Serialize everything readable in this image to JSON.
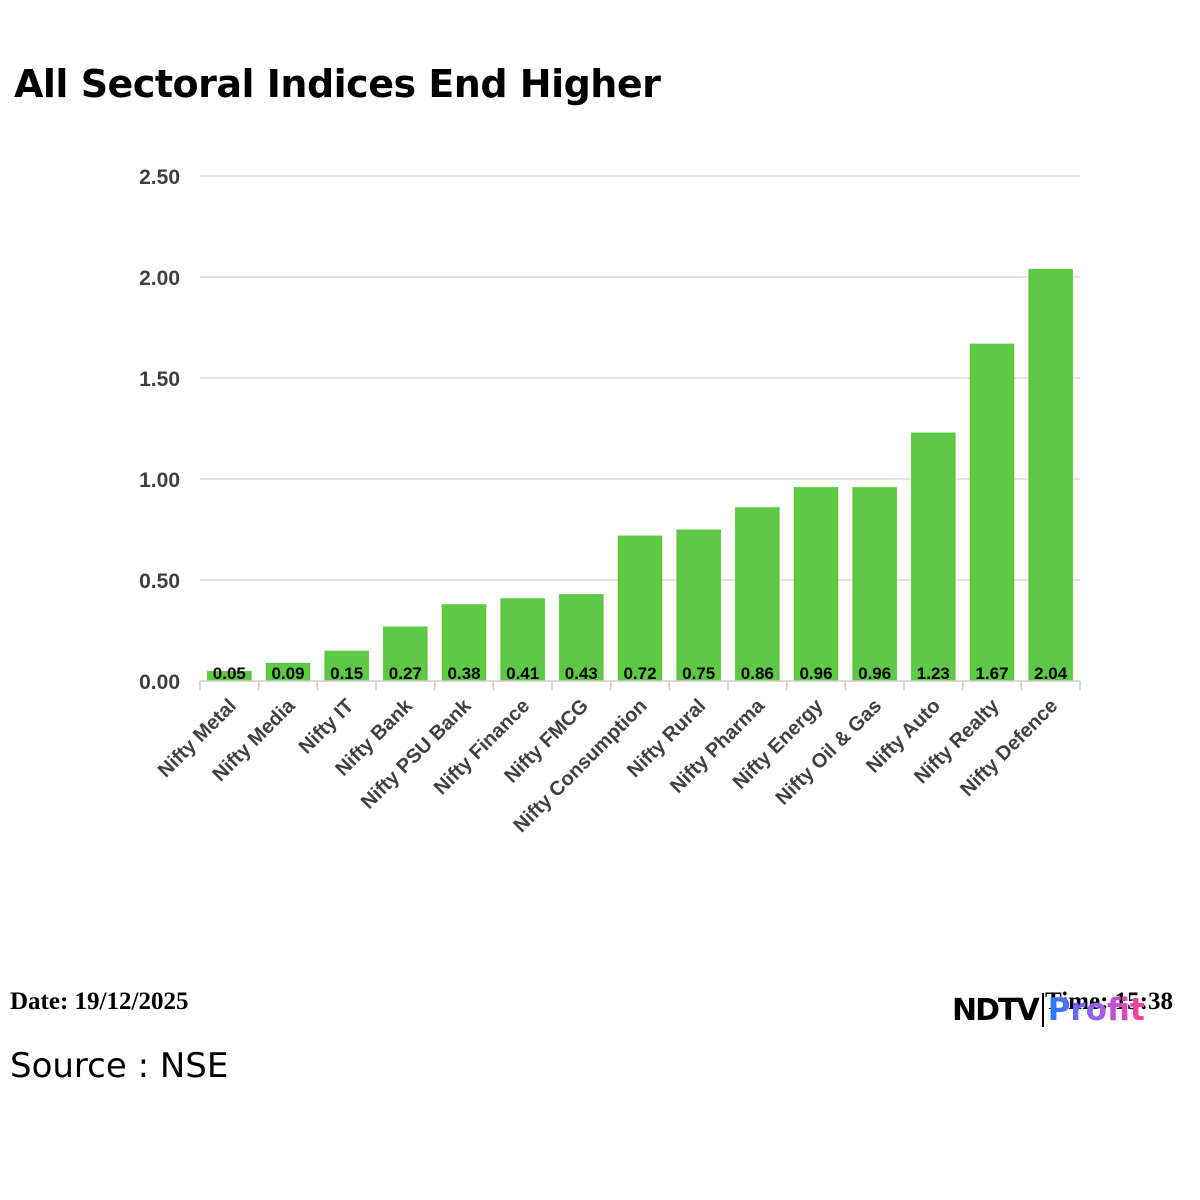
{
  "header": {
    "title": "All Sectoral Indices End Higher"
  },
  "footer": {
    "date": "Date: 19/12/2025",
    "time": "Time: 15:38",
    "source": "Source : NSE",
    "logo_left": "NDTV",
    "logo_right": "Profit"
  },
  "chart_data": {
    "type": "bar",
    "categories": [
      "Nifty Metal",
      "Nifty Media",
      "Nifty IT",
      "Nifty Bank",
      "Nifty PSU Bank",
      "Nifty Finance",
      "Nifty FMCG",
      "Nifty Consumption",
      "Nifty Rural",
      "Nifty Pharma",
      "Nifty Energy",
      "Nifty Oil & Gas",
      "Nifty Auto",
      "Nifty Realty",
      "Nifty Defence"
    ],
    "values": [
      0.05,
      0.09,
      0.15,
      0.27,
      0.38,
      0.41,
      0.43,
      0.72,
      0.75,
      0.86,
      0.96,
      0.96,
      1.23,
      1.67,
      2.04
    ],
    "value_labels": [
      "0.05",
      "0.09",
      "0.15",
      "0.27",
      "0.38",
      "0.41",
      "0.43",
      "0.72",
      "0.75",
      "0.86",
      "0.96",
      "0.96",
      "1.23",
      "1.67",
      "2.04"
    ],
    "yticks": [
      0,
      0.5,
      1,
      1.5,
      2,
      2.5
    ],
    "ytick_labels": [
      "0.00",
      "0.50",
      "1.00",
      "1.50",
      "2.00",
      "2.50"
    ],
    "ylim": [
      0,
      2.5
    ],
    "xlabel": "",
    "ylabel": "",
    "grid": true,
    "legend": false,
    "bar_color": "#5dc947"
  }
}
